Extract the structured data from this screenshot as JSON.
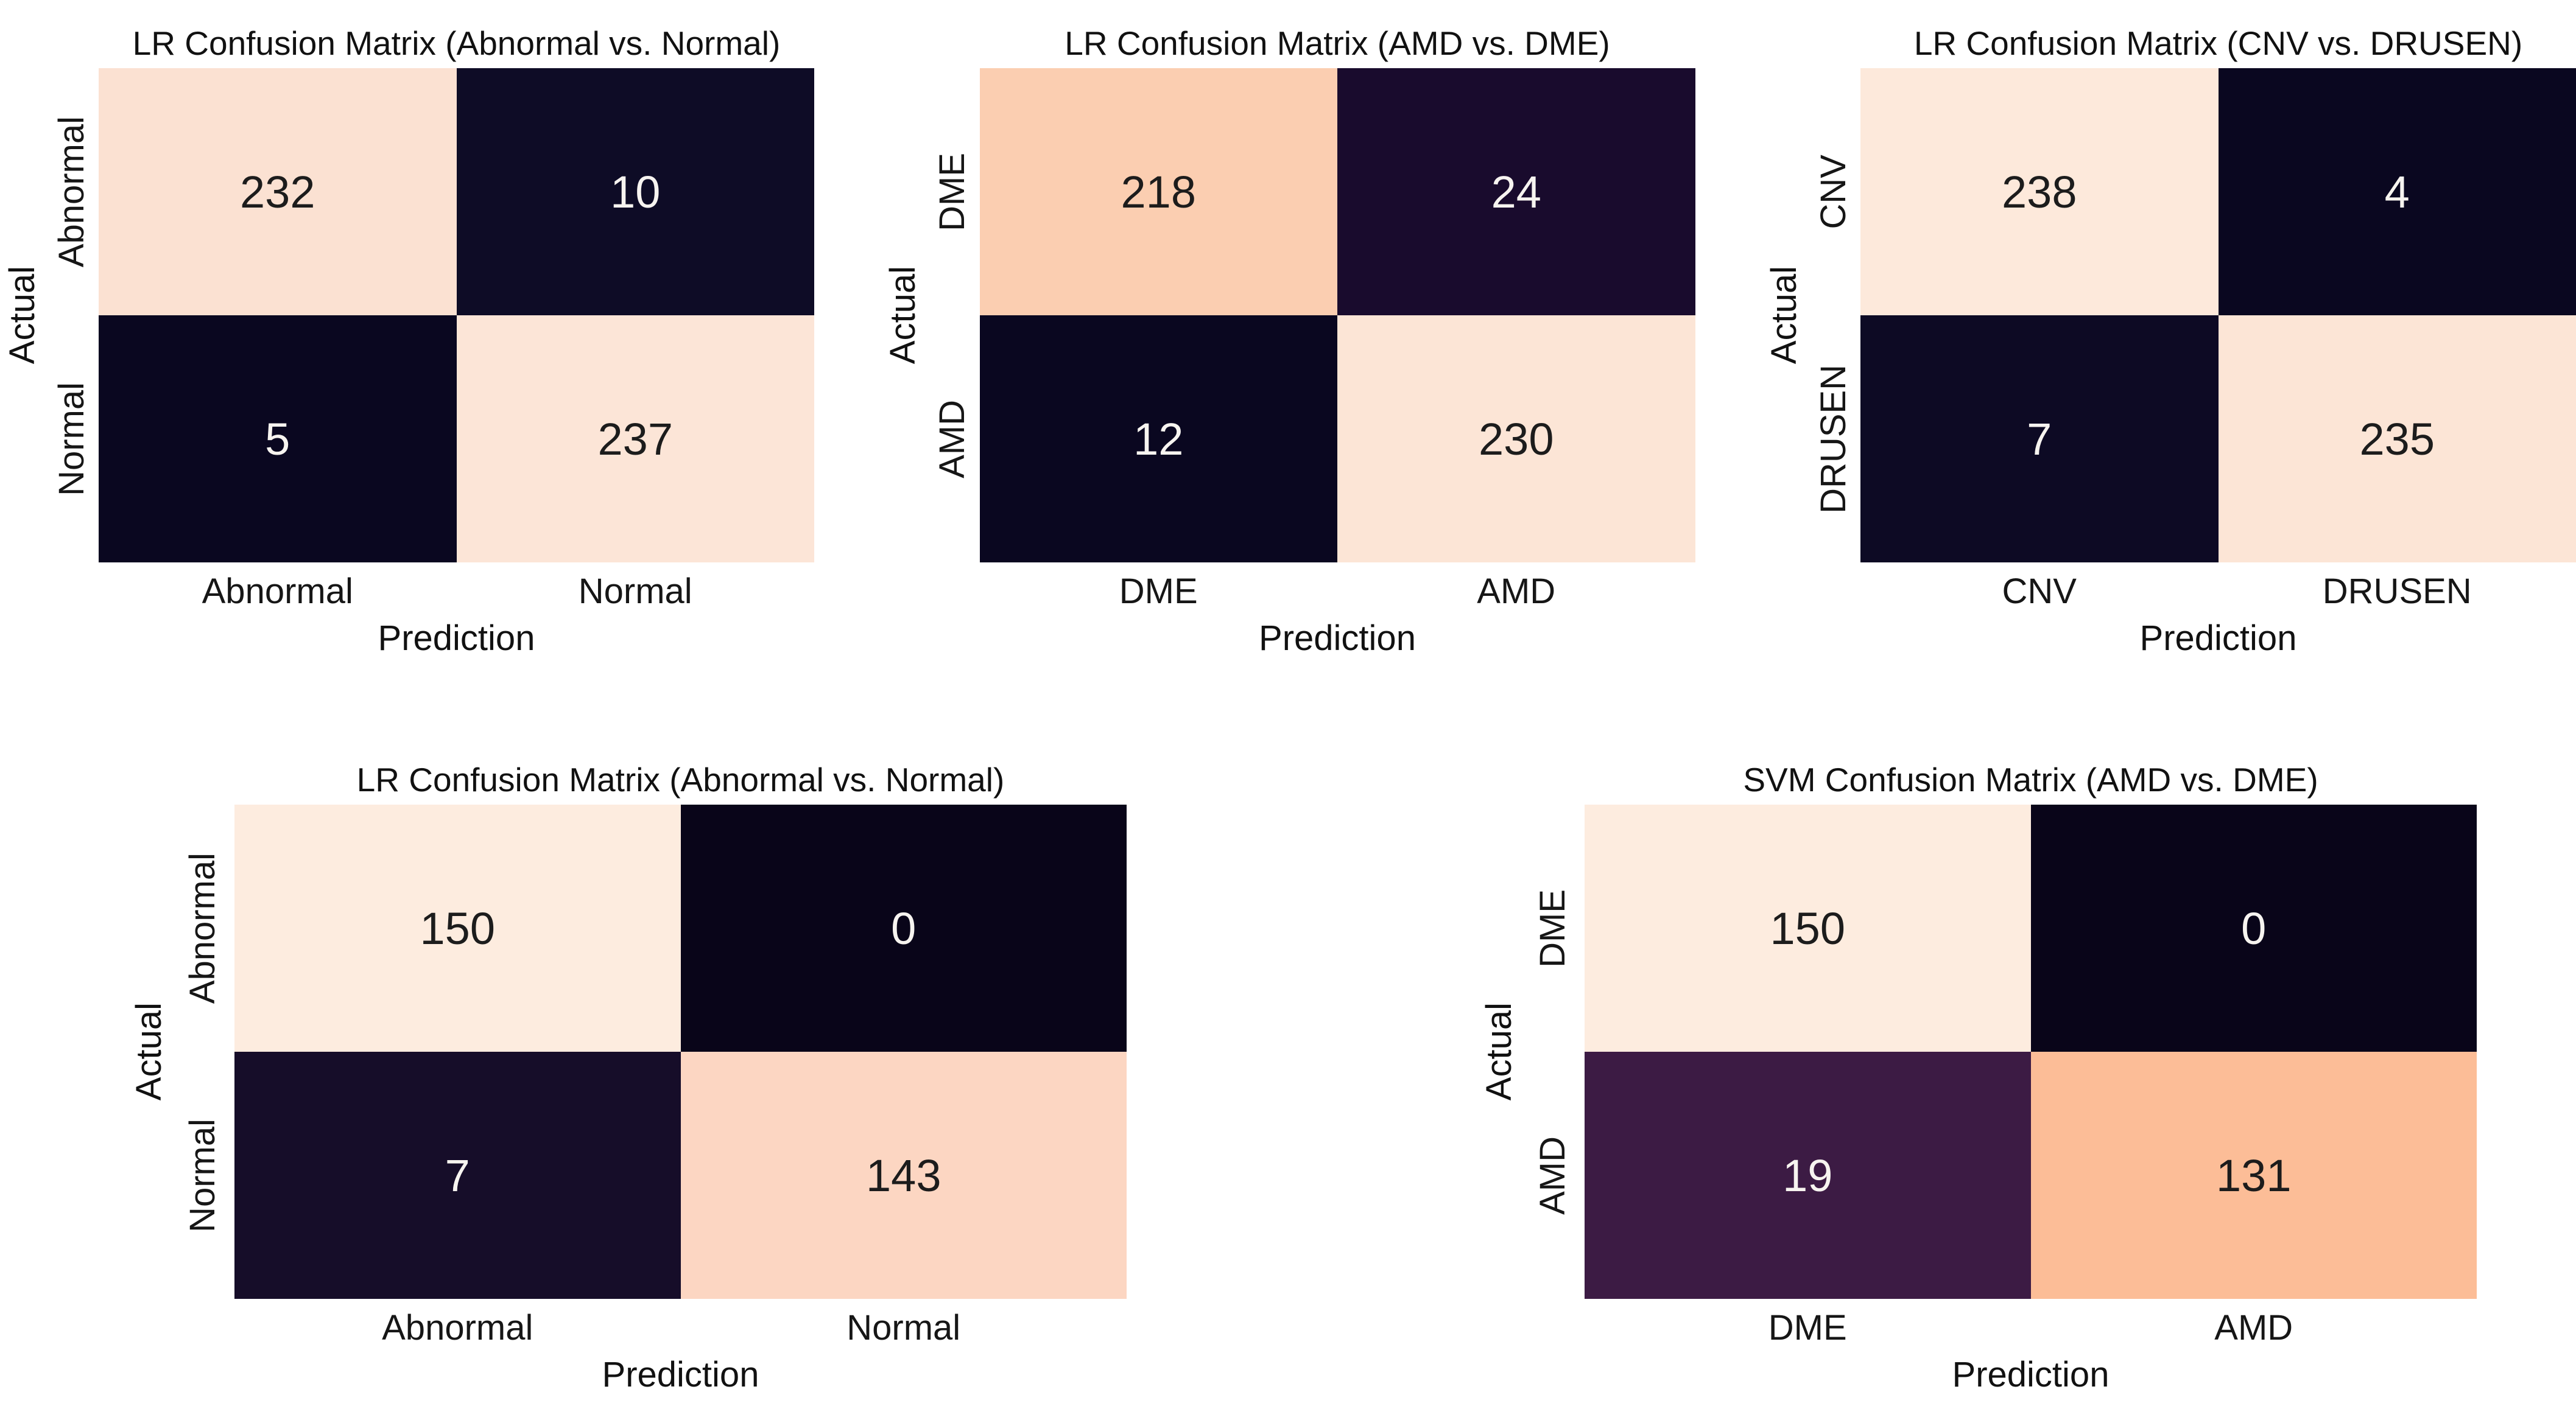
{
  "figure": {
    "background": "#ffffff",
    "text_color": "#151515",
    "palette_note": "seaborn rocket colormap: high values cream/peach, low values near-black purple"
  },
  "chart_data": [
    {
      "type": "heatmap",
      "title": "LR Confusion Matrix (Abnormal vs. Normal)",
      "xlabel": "Prediction",
      "ylabel": "Actual",
      "x_categories": [
        "Abnormal",
        "Normal"
      ],
      "y_categories": [
        "Abnormal",
        "Normal"
      ],
      "values": [
        [
          232,
          10
        ],
        [
          5,
          237
        ]
      ],
      "cells": [
        [
          {
            "value": "232",
            "bg": "#fbe1d2",
            "fg": "#1c1c1c"
          },
          {
            "value": "10",
            "bg": "#0e0c26",
            "fg": "#f7f4f0"
          }
        ],
        [
          {
            "value": "5",
            "bg": "#0a0720",
            "fg": "#f7f4f0"
          },
          {
            "value": "237",
            "bg": "#fce5d7",
            "fg": "#1c1c1c"
          }
        ]
      ]
    },
    {
      "type": "heatmap",
      "title": "LR Confusion Matrix (AMD vs. DME)",
      "xlabel": "Prediction",
      "ylabel": "Actual",
      "x_categories": [
        "DME",
        "AMD"
      ],
      "y_categories": [
        "DME",
        "AMD"
      ],
      "values": [
        [
          218,
          24
        ],
        [
          12,
          230
        ]
      ],
      "cells": [
        [
          {
            "value": "218",
            "bg": "#fbceb1",
            "fg": "#1c1c1c"
          },
          {
            "value": "24",
            "bg": "#190b2d",
            "fg": "#f7f4f0"
          }
        ],
        [
          {
            "value": "12",
            "bg": "#0a0720",
            "fg": "#f7f4f0"
          },
          {
            "value": "230",
            "bg": "#fce5d6",
            "fg": "#1c1c1c"
          }
        ]
      ]
    },
    {
      "type": "heatmap",
      "title": "LR Confusion Matrix (CNV vs. DRUSEN)",
      "xlabel": "Prediction",
      "ylabel": "Actual",
      "x_categories": [
        "CNV",
        "DRUSEN"
      ],
      "y_categories": [
        "CNV",
        "DRUSEN"
      ],
      "values": [
        [
          238,
          4
        ],
        [
          7,
          235
        ]
      ],
      "cells": [
        [
          {
            "value": "238",
            "bg": "#fde9db",
            "fg": "#1c1c1c"
          },
          {
            "value": "4",
            "bg": "#0a0720",
            "fg": "#f7f4f0"
          }
        ],
        [
          {
            "value": "7",
            "bg": "#0d0a24",
            "fg": "#f7f4f0"
          },
          {
            "value": "235",
            "bg": "#fce5d6",
            "fg": "#1c1c1c"
          }
        ]
      ]
    },
    {
      "type": "heatmap",
      "title": "LR Confusion Matrix (Abnormal vs. Normal)",
      "xlabel": "Prediction",
      "ylabel": "Actual",
      "x_categories": [
        "Abnormal",
        "Normal"
      ],
      "y_categories": [
        "Abnormal",
        "Normal"
      ],
      "values": [
        [
          150,
          0
        ],
        [
          7,
          143
        ]
      ],
      "cells": [
        [
          {
            "value": "150",
            "bg": "#fdecdf",
            "fg": "#1c1c1c"
          },
          {
            "value": "0",
            "bg": "#090519",
            "fg": "#f7f4f0"
          }
        ],
        [
          {
            "value": "7",
            "bg": "#160d29",
            "fg": "#f7f4f0"
          },
          {
            "value": "143",
            "bg": "#fcd6c2",
            "fg": "#1c1c1c"
          }
        ]
      ]
    },
    {
      "type": "heatmap",
      "title": "SVM Confusion Matrix (AMD vs. DME)",
      "xlabel": "Prediction",
      "ylabel": "Actual",
      "x_categories": [
        "DME",
        "AMD"
      ],
      "y_categories": [
        "DME",
        "AMD"
      ],
      "values": [
        [
          150,
          0
        ],
        [
          19,
          131
        ]
      ],
      "cells": [
        [
          {
            "value": "150",
            "bg": "#fdecdf",
            "fg": "#1c1c1c"
          },
          {
            "value": "0",
            "bg": "#090519",
            "fg": "#f7f4f0"
          }
        ],
        [
          {
            "value": "19",
            "bg": "#3c1b44",
            "fg": "#f7f4f0"
          },
          {
            "value": "131",
            "bg": "#fcbd97",
            "fg": "#1c1c1c"
          }
        ]
      ]
    }
  ]
}
